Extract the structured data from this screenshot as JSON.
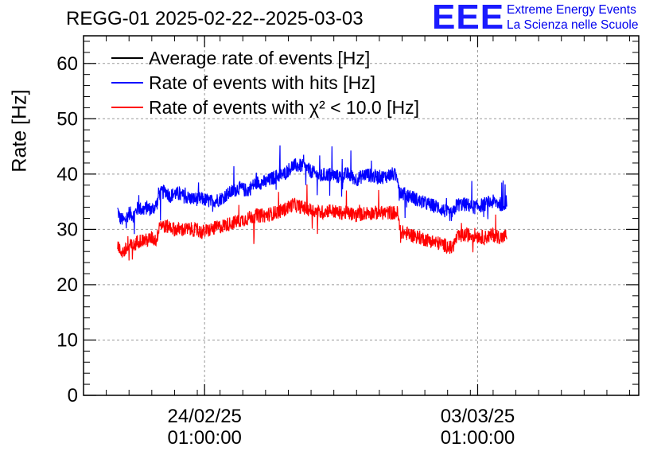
{
  "header": {
    "title": "REGG-01 2025-02-22--2025-03-03",
    "logo_mark": "EEE",
    "logo_line1": "Extreme Energy Events",
    "logo_line2": "La Scienza nelle Scuole"
  },
  "colors": {
    "average": "#000000",
    "hits": "#0000ff",
    "chi2": "#ff0000",
    "grid": "#999999",
    "logo": "#1a1aff"
  },
  "chart_data": {
    "type": "line",
    "title": "REGG-01 2025-02-22--2025-03-03",
    "ylabel": "Rate [Hz]",
    "xlabel": "",
    "ylim": [
      0,
      65
    ],
    "yticks": [
      "0",
      "10",
      "20",
      "30",
      "40",
      "50",
      "60"
    ],
    "xlim_days": [
      0,
      12.2
    ],
    "xticks": [
      {
        "pos_days": 2.66,
        "line1": "24/02/25",
        "line2": "01:00:00"
      },
      {
        "pos_days": 8.66,
        "line1": "03/03/25",
        "line2": "01:00:00"
      }
    ],
    "grid": true,
    "legend": {
      "placement": "top-left",
      "entries": [
        {
          "label": "Average rate of events [Hz]",
          "color": "#000000"
        },
        {
          "label": "Rate of events with hits [Hz]",
          "color": "#0000ff"
        },
        {
          "label": "Rate of events with χ² < 10.0 [Hz]",
          "color": "#ff0000"
        }
      ]
    },
    "series": [
      {
        "name": "Rate of events with hits [Hz]",
        "color": "#0000ff",
        "x": [
          0.75,
          0.8,
          0.9,
          1.0,
          1.1,
          1.2,
          1.3,
          1.4,
          1.5,
          1.6,
          1.63,
          1.65,
          1.7,
          1.8,
          1.9,
          2.0,
          2.2,
          2.4,
          2.6,
          2.8,
          3.0,
          3.2,
          3.4,
          3.6,
          3.8,
          4.0,
          4.2,
          4.4,
          4.6,
          4.8,
          5.0,
          5.2,
          5.4,
          5.6,
          5.8,
          6.0,
          6.2,
          6.4,
          6.6,
          6.8,
          6.9,
          6.95,
          7.0,
          7.2,
          7.4,
          7.6,
          7.8,
          8.0,
          8.1,
          8.2,
          8.4,
          8.6,
          8.8,
          9.0,
          9.2,
          9.3
        ],
        "values": [
          33.5,
          32.0,
          31.5,
          33.0,
          32.5,
          34.0,
          33.5,
          34.0,
          33.5,
          34.5,
          35.0,
          36.5,
          36.5,
          37.0,
          36.0,
          36.5,
          36.0,
          35.5,
          35.5,
          35.0,
          35.5,
          36.5,
          37.5,
          37.0,
          38.5,
          38.5,
          39.5,
          40.0,
          41.5,
          41.5,
          40.5,
          39.5,
          40.0,
          39.5,
          40.0,
          39.0,
          40.0,
          39.5,
          39.5,
          40.0,
          39.5,
          37.0,
          36.5,
          36.0,
          35.0,
          34.5,
          34.0,
          33.0,
          32.5,
          34.5,
          34.5,
          34.0,
          34.5,
          35.0,
          34.5,
          35.0
        ]
      },
      {
        "name": "Rate of events with χ² < 10.0 [Hz]",
        "color": "#ff0000",
        "x": [
          0.75,
          0.8,
          0.9,
          1.0,
          1.1,
          1.2,
          1.3,
          1.4,
          1.5,
          1.6,
          1.63,
          1.65,
          1.7,
          1.8,
          1.9,
          2.0,
          2.2,
          2.4,
          2.6,
          2.8,
          3.0,
          3.2,
          3.4,
          3.6,
          3.8,
          4.0,
          4.2,
          4.4,
          4.6,
          4.8,
          5.0,
          5.2,
          5.4,
          5.6,
          5.8,
          6.0,
          6.2,
          6.4,
          6.6,
          6.8,
          6.9,
          6.95,
          7.0,
          7.2,
          7.4,
          7.6,
          7.8,
          8.0,
          8.1,
          8.2,
          8.4,
          8.6,
          8.8,
          9.0,
          9.2,
          9.3
        ],
        "values": [
          27.5,
          26.0,
          26.0,
          27.0,
          27.0,
          28.0,
          28.0,
          28.0,
          28.5,
          28.0,
          29.0,
          31.0,
          31.0,
          30.5,
          30.5,
          30.0,
          30.0,
          30.0,
          29.5,
          30.0,
          30.5,
          31.0,
          31.5,
          32.0,
          32.5,
          32.5,
          33.0,
          33.5,
          34.5,
          34.0,
          33.5,
          33.0,
          33.5,
          33.0,
          33.0,
          32.5,
          33.0,
          33.0,
          33.0,
          33.0,
          33.0,
          30.0,
          29.5,
          29.0,
          28.5,
          28.0,
          27.5,
          27.0,
          26.5,
          28.5,
          29.0,
          29.0,
          28.5,
          29.0,
          28.5,
          29.0
        ]
      }
    ]
  }
}
